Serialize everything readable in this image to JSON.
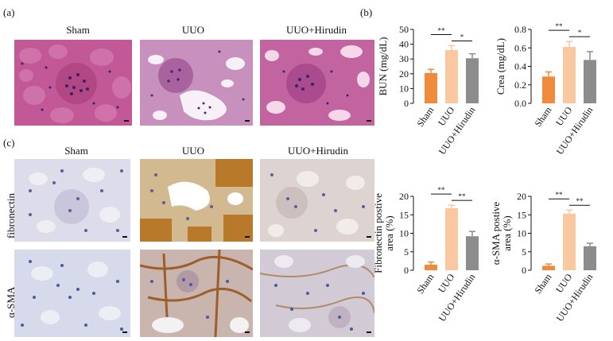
{
  "panel_labels": {
    "a": "(a)",
    "b": "(b)",
    "c": "(c)"
  },
  "he_panel": {
    "columns": [
      "Sham",
      "UUO",
      "UUO+Hirudin"
    ]
  },
  "ihc_panel": {
    "columns": [
      "Sham",
      "UUO",
      "UUO+Hirudin"
    ],
    "rows": [
      "fibronectin",
      "α-SMA"
    ]
  },
  "colors": {
    "sham": "#f08a3c",
    "uuo": "#f9c7a0",
    "hirudin": "#8c8c8c",
    "he_bg": "#c15a92",
    "ihc_bg": "#d7d9e6"
  },
  "chart_data": [
    {
      "type": "bar",
      "categories": [
        "Sham",
        "UUO",
        "UUO+Hirudin"
      ],
      "values": [
        20.5,
        36,
        30.5
      ],
      "errors": [
        2.5,
        3,
        3
      ],
      "ylabel": "BUN (mg/dL)",
      "ylim": [
        0,
        50
      ],
      "yticks": [
        0,
        10,
        20,
        30,
        40,
        50
      ],
      "significance": [
        {
          "from": 0,
          "to": 1,
          "label": "**"
        },
        {
          "from": 1,
          "to": 2,
          "label": "*"
        }
      ]
    },
    {
      "type": "bar",
      "categories": [
        "Sham",
        "UUO",
        "UUO+Hirudin"
      ],
      "values": [
        0.29,
        0.61,
        0.47
      ],
      "errors": [
        0.05,
        0.06,
        0.09
      ],
      "ylabel": "Crea (mg/dL)",
      "ylim": [
        0,
        0.8
      ],
      "yticks": [
        0.0,
        0.2,
        0.4,
        0.6,
        0.8
      ],
      "significance": [
        {
          "from": 0,
          "to": 1,
          "label": "**"
        },
        {
          "from": 1,
          "to": 2,
          "label": "*"
        }
      ]
    },
    {
      "type": "bar",
      "categories": [
        "Sham",
        "UUO",
        "UUO+Hirudin"
      ],
      "values": [
        1.5,
        16.8,
        9.2
      ],
      "errors": [
        0.7,
        0.8,
        1.3
      ],
      "ylabel": "Fibronectin postive area (%)",
      "ylabel_lines": [
        "Fibronectin postive",
        "area (%)"
      ],
      "ylim": [
        0,
        20
      ],
      "yticks": [
        0,
        5,
        10,
        15,
        20
      ],
      "significance": [
        {
          "from": 0,
          "to": 1,
          "label": "**"
        },
        {
          "from": 1,
          "to": 2,
          "label": "**"
        }
      ]
    },
    {
      "type": "bar",
      "categories": [
        "Sham",
        "UUO",
        "UUO+Hirudin"
      ],
      "values": [
        1.2,
        15.3,
        6.5
      ],
      "errors": [
        0.5,
        1.0,
        0.8
      ],
      "ylabel": "α-SMA postive area (%)",
      "ylabel_lines": [
        "α-SMA postive",
        "area (%)"
      ],
      "ylim": [
        0,
        20
      ],
      "yticks": [
        0,
        5,
        10,
        15,
        20
      ],
      "significance": [
        {
          "from": 0,
          "to": 1,
          "label": "**"
        },
        {
          "from": 1,
          "to": 2,
          "label": "**"
        }
      ]
    }
  ]
}
